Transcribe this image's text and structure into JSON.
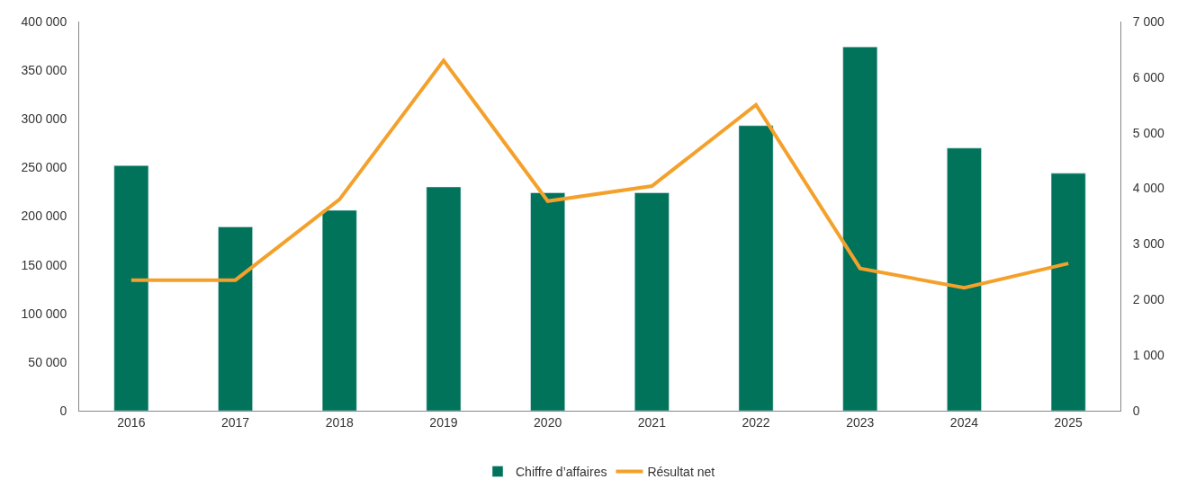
{
  "chart_data": {
    "type": "bar",
    "categories": [
      "2016",
      "2017",
      "2018",
      "2019",
      "2020",
      "2021",
      "2022",
      "2023",
      "2024",
      "2025"
    ],
    "series": [
      {
        "name": "Chiffre d’affaires",
        "color": "#00735a",
        "values": [
          252000,
          189000,
          206000,
          230000,
          224000,
          224000,
          293000,
          374000,
          270000,
          244000
        ]
      },
      {
        "name": "Résultat net",
        "type": "line",
        "axis": "y2",
        "color": "#f4a12c",
        "values": [
          2350,
          2350,
          3800,
          6300,
          3770,
          4040,
          5500,
          2560,
          2210,
          2650
        ]
      }
    ],
    "ylim": [
      0,
      400000
    ],
    "yticks": [
      0,
      {
        "value": 50000,
        "label": "50 000"
      },
      {
        "value": 100000,
        "label": "100 000"
      },
      {
        "value": 150000,
        "label": "150 000"
      },
      {
        "value": 200000,
        "label": "200 000"
      },
      {
        "value": 250000,
        "label": "250 000"
      },
      {
        "value": 300000,
        "label": "300 000"
      },
      {
        "value": 350000,
        "label": "350 000"
      },
      {
        "value": 400000,
        "label": "400 000"
      }
    ],
    "y2lim": [
      0,
      7000
    ],
    "y2ticks": [
      0,
      {
        "value": 1000,
        "label": "1 000"
      },
      {
        "value": 2000,
        "label": "2 000"
      },
      {
        "value": 3000,
        "label": "3 000"
      },
      {
        "value": 4000,
        "label": "4 000"
      },
      {
        "value": 5000,
        "label": "5 000"
      },
      {
        "value": 6000,
        "label": "6 000"
      },
      {
        "value": 7000,
        "label": "7 000"
      }
    ],
    "grid": false,
    "legend": "bottom",
    "marker": "none",
    "line_style": "solid"
  }
}
